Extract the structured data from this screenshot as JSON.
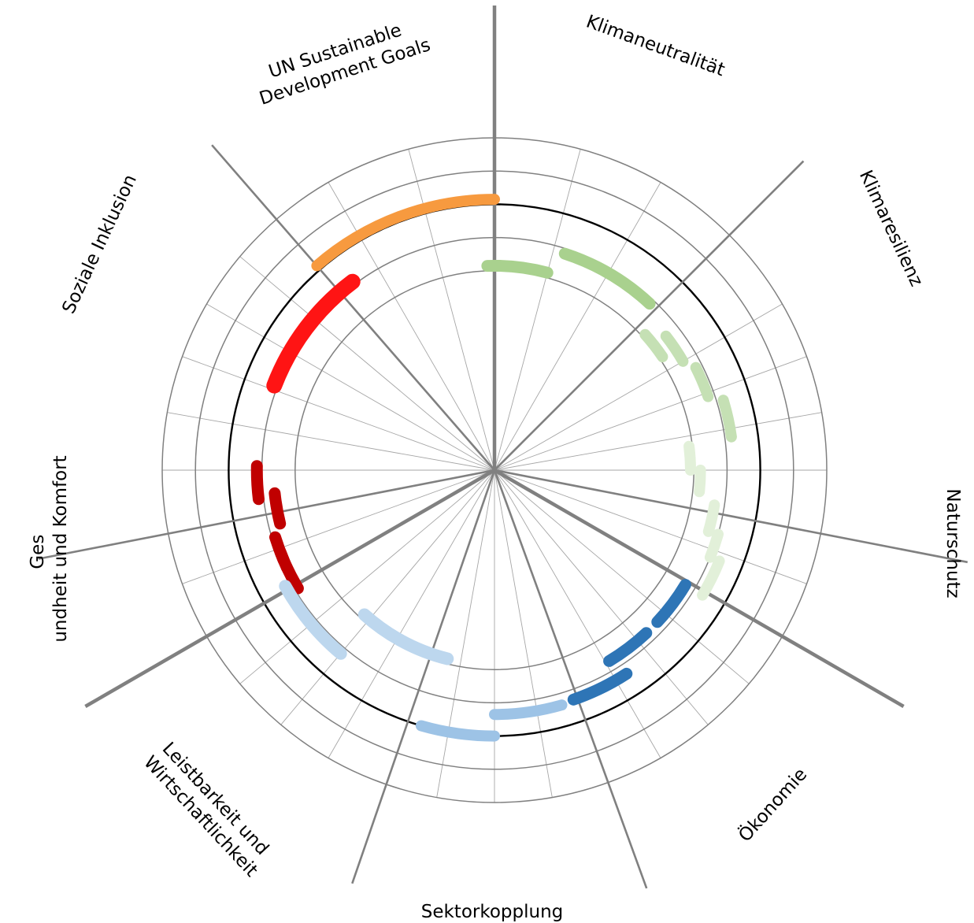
{
  "chart_data": {
    "type": "radial-arc",
    "title": "",
    "grid": true,
    "r_max": 10,
    "rings": [
      {
        "r": 10,
        "color": "#808080"
      },
      {
        "r": 9,
        "color": "#808080"
      },
      {
        "r": 8,
        "color": "#000000"
      },
      {
        "r": 7,
        "color": "#808080"
      },
      {
        "r": 6,
        "color": "#808080"
      }
    ],
    "axes": [
      {
        "angle": 0,
        "major": true
      },
      {
        "angle": 45,
        "major": false
      },
      {
        "angle": 101,
        "major": false
      },
      {
        "angle": 120,
        "major": true
      },
      {
        "angle": 160,
        "major": false
      },
      {
        "angle": 199,
        "major": false
      },
      {
        "angle": 240,
        "major": true
      },
      {
        "angle": 259,
        "major": false
      },
      {
        "angle": 319,
        "major": false
      }
    ],
    "minor_spokes": [
      15,
      30,
      60,
      70,
      80,
      90,
      110,
      130,
      140,
      150,
      170,
      180,
      190,
      210,
      220,
      230,
      250,
      270,
      280,
      290,
      300,
      310,
      330,
      345
    ],
    "categories": [
      {
        "label": "Klimaneutralität",
        "angle": 23
      },
      {
        "label": "Klimaresilienz",
        "angle": 68
      },
      {
        "label": "Naturschutz",
        "angle": 107
      },
      {
        "label": "Ökonomie",
        "angle": 141
      },
      {
        "label": "Sektorkopplung",
        "angle": 180
      },
      {
        "label": "Leistbarkeit und Wirtschaftlichkeit",
        "angle": 218
      },
      {
        "label": "Gesundheit und Komfort",
        "angle": 263
      },
      {
        "label": "Soziale Inklusion",
        "angle": 298
      },
      {
        "label": "UN Sustainable Development Goals",
        "angle": 338
      }
    ],
    "series": [
      {
        "color": "#f79a3f",
        "width": 14,
        "arcs": [
          {
            "r": 8.15,
            "start": 319,
            "end": 360
          }
        ]
      },
      {
        "color": "#ff1414",
        "width": 20,
        "arcs": [
          {
            "r": 7.1,
            "start": 291,
            "end": 323
          }
        ]
      },
      {
        "color": "#c00000",
        "width": 15,
        "arcs": [
          {
            "r": 7.15,
            "start": 263,
            "end": 271
          },
          {
            "r": 6.65,
            "start": 256,
            "end": 264
          },
          {
            "r": 6.9,
            "start": 247,
            "end": 253
          },
          {
            "r": 6.9,
            "start": 245,
            "end": 249
          },
          {
            "r": 6.9,
            "start": 239,
            "end": 245
          }
        ]
      },
      {
        "color": "#bdd7ee",
        "width": 16,
        "arcs": [
          {
            "r": 7.2,
            "start": 220,
            "end": 241
          },
          {
            "r": 5.85,
            "start": 209,
            "end": 222
          },
          {
            "r": 5.85,
            "start": 194,
            "end": 209
          }
        ]
      },
      {
        "color": "#9dc3e6",
        "width": 14,
        "arcs": [
          {
            "r": 8.0,
            "start": 180,
            "end": 196
          },
          {
            "r": 7.35,
            "start": 164,
            "end": 180
          }
        ]
      },
      {
        "color": "#2e75b6",
        "width": 15,
        "arcs": [
          {
            "r": 7.3,
            "start": 147,
            "end": 161
          },
          {
            "r": 6.7,
            "start": 137,
            "end": 149
          },
          {
            "r": 6.7,
            "start": 121,
            "end": 133
          }
        ]
      },
      {
        "color": "#a9d18e",
        "width": 15,
        "arcs": [
          {
            "r": 6.15,
            "start": 358,
            "end": 375
          },
          {
            "r": 6.85,
            "start": 18,
            "end": 43
          }
        ]
      },
      {
        "color": "#c5e0b4",
        "width": 14,
        "arcs": [
          {
            "r": 6.1,
            "start": 48,
            "end": 56
          },
          {
            "r": 6.55,
            "start": 52,
            "end": 60
          },
          {
            "r": 6.8,
            "start": 63,
            "end": 71
          },
          {
            "r": 7.2,
            "start": 73,
            "end": 82
          }
        ]
      },
      {
        "color": "#e2f0d9",
        "width": 14,
        "arcs": [
          {
            "r": 5.9,
            "start": 83,
            "end": 90
          },
          {
            "r": 6.2,
            "start": 90,
            "end": 96
          },
          {
            "r": 6.7,
            "start": 99,
            "end": 106
          },
          {
            "r": 7.0,
            "start": 106,
            "end": 112
          },
          {
            "r": 7.3,
            "start": 112,
            "end": 121
          }
        ]
      }
    ]
  }
}
